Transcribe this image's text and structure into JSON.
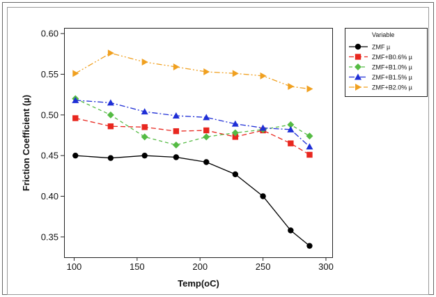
{
  "chart_data": {
    "type": "line",
    "title": "",
    "xlabel": "Temp(oC)",
    "ylabel": "Friction Coefficient (µ)",
    "xlim": [
      92,
      305
    ],
    "ylim": [
      0.325,
      0.607
    ],
    "xticks": [
      100,
      150,
      200,
      250,
      300
    ],
    "yticks": [
      0.35,
      0.4,
      0.45,
      0.5,
      0.55,
      0.6
    ],
    "xtick_labels": [
      "100",
      "150",
      "200",
      "250",
      "300"
    ],
    "ytick_labels": [
      "0.35",
      "0.40",
      "0.45",
      "0.50",
      "0.55",
      "0.60"
    ],
    "x": [
      101,
      129,
      156,
      181,
      205,
      228,
      250,
      272,
      287
    ],
    "grid": false,
    "legend": {
      "title": "Variable",
      "position": "top-right, outside plot"
    },
    "series": [
      {
        "name": "ZMF µ",
        "color": "#000000",
        "marker": "circle",
        "dash": "solid",
        "values": [
          0.45,
          0.447,
          0.45,
          0.448,
          0.442,
          0.427,
          0.4,
          0.358,
          0.339
        ]
      },
      {
        "name": "ZMF+B0.6% µ",
        "color": "#e8271f",
        "marker": "square",
        "dash": "long-dash",
        "values": [
          0.496,
          0.486,
          0.485,
          0.48,
          0.481,
          0.473,
          0.481,
          0.465,
          0.451
        ]
      },
      {
        "name": "ZMF+B1.0% µ",
        "color": "#55bb44",
        "marker": "diamond",
        "dash": "dash",
        "values": [
          0.52,
          0.5,
          0.473,
          0.463,
          0.473,
          0.478,
          0.482,
          0.488,
          0.474
        ]
      },
      {
        "name": "ZMF+B1.5% µ",
        "color": "#1f2fd6",
        "marker": "triangle-up",
        "dash": "dash-dot",
        "values": [
          0.518,
          0.515,
          0.504,
          0.499,
          0.497,
          0.489,
          0.484,
          0.482,
          0.461
        ]
      },
      {
        "name": "ZMF+B2.0% µ",
        "color": "#f0a020",
        "marker": "triangle-right",
        "dash": "dash-dot-dot",
        "values": [
          0.551,
          0.576,
          0.565,
          0.559,
          0.553,
          0.551,
          0.548,
          0.535,
          0.532
        ]
      }
    ]
  }
}
